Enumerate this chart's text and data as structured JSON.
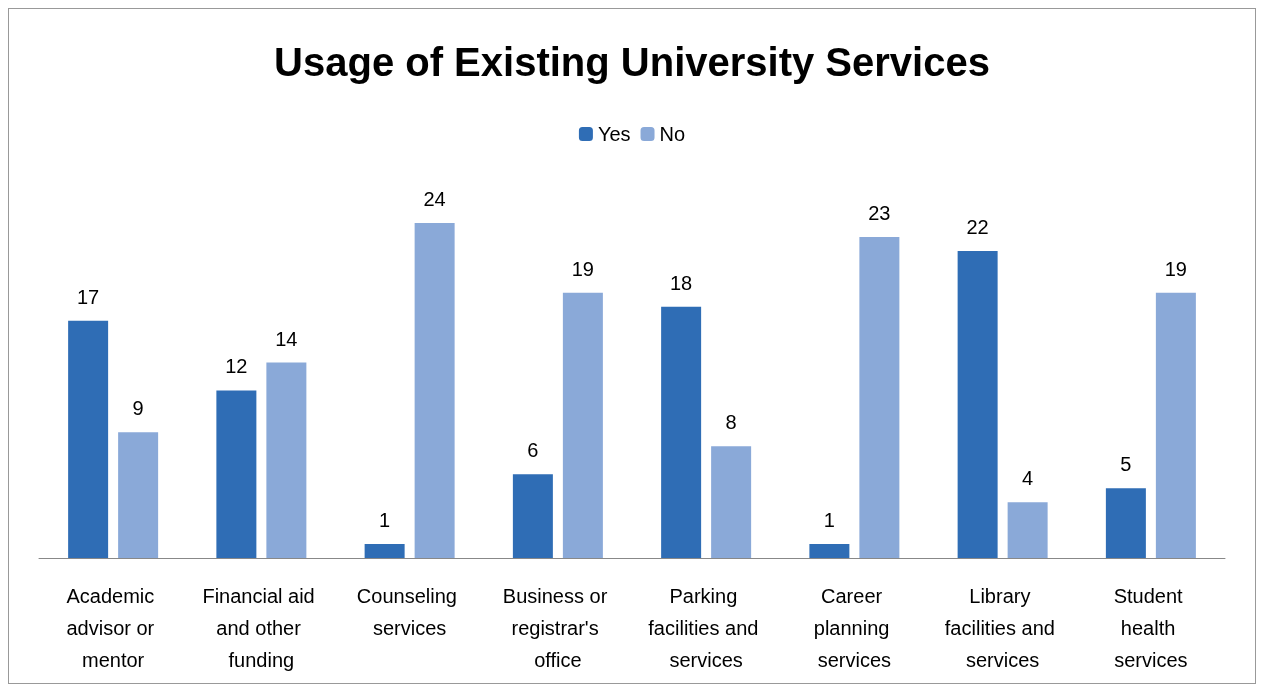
{
  "chart_data": {
    "type": "bar",
    "title": "Usage of Existing University Services",
    "categories": [
      "Academic advisor or mentor",
      "Financial aid and other funding",
      "Counseling services",
      "Business or registrar's office",
      "Parking facilities and services",
      "Career planning services",
      "Library facilities and services",
      "Student health services"
    ],
    "series": [
      {
        "name": "Yes",
        "color": "#2f6db5",
        "values": [
          17,
          12,
          1,
          6,
          18,
          1,
          22,
          5
        ]
      },
      {
        "name": "No",
        "color": "#8aa9d8",
        "values": [
          9,
          14,
          24,
          19,
          8,
          23,
          4,
          19
        ]
      }
    ],
    "data_labels": true,
    "legend": "top"
  }
}
